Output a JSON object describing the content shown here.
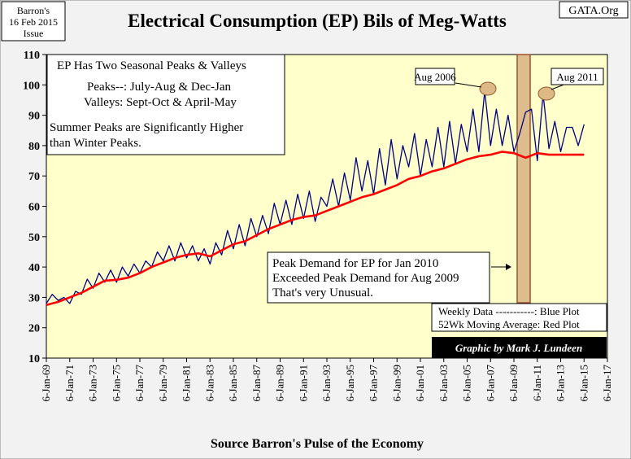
{
  "header": {
    "title": "Electrical Consumption (EP) Bils of Meg-Watts",
    "source_line1": "Barron's",
    "source_line2": "16 Feb 2015",
    "source_line3": "Issue",
    "site": "GATA.Org"
  },
  "footer": {
    "source": "Source Barron's Pulse of the Economy"
  },
  "notes": {
    "box1_title": "EP Has Two Seasonal Peaks & Valleys",
    "box1_peaks": "Peaks--:  July-Aug & Dec-Jan",
    "box1_valleys": "Valleys:  Sept-Oct & April-May",
    "box1_summer1": "Summer Peaks are Significantly  Higher",
    "box1_summer2": "than Winter Peaks.",
    "peak_line1": "Peak Demand for EP for Jan 2010",
    "peak_line2": "Exceeded Peak Demand for Aug 2009",
    "peak_line3": "That's very Unusual.",
    "legend_line1": "Weekly Data -----------: Blue Plot",
    "legend_line2": "52Wk Moving Average: Red Plot",
    "credit": "Graphic by Mark J. Lundeen",
    "callout_2006": "Aug 2006",
    "callout_2011": "Aug 2011"
  },
  "chart_data": {
    "type": "line",
    "title": "Electrical Consumption (EP) Bils of Meg-Watts",
    "xlabel": "Source Barron's Pulse of the Economy",
    "ylabel": "",
    "ylim": [
      10,
      110
    ],
    "yticks": [
      10,
      20,
      30,
      40,
      50,
      60,
      70,
      80,
      90,
      100,
      110
    ],
    "xlim": [
      1969,
      2017
    ],
    "xticks": [
      "6-Jan-69",
      "6-Jan-71",
      "6-Jan-73",
      "6-Jan-75",
      "6-Jan-77",
      "6-Jan-79",
      "6-Jan-81",
      "6-Jan-83",
      "6-Jan-85",
      "6-Jan-87",
      "6-Jan-89",
      "6-Jan-91",
      "6-Jan-93",
      "6-Jan-95",
      "6-Jan-97",
      "6-Jan-99",
      "6-Jan-01",
      "6-Jan-03",
      "6-Jan-05",
      "6-Jan-07",
      "6-Jan-09",
      "6-Jan-11",
      "6-Jan-13",
      "6-Jan-15",
      "6-Jan-17"
    ],
    "grid": false,
    "colors": {
      "plot_bg": "#ffffcc",
      "weekly": "#000080",
      "average": "#ff0000",
      "highlight": "#d2a679"
    },
    "series": [
      {
        "name": "Weekly Data",
        "color": "#000080",
        "x": [
          1969.0,
          1969.5,
          1970.0,
          1970.5,
          1971.0,
          1971.5,
          1972.0,
          1972.5,
          1973.0,
          1973.5,
          1974.0,
          1974.5,
          1975.0,
          1975.5,
          1976.0,
          1976.5,
          1977.0,
          1977.5,
          1978.0,
          1978.5,
          1979.0,
          1979.5,
          1980.0,
          1980.5,
          1981.0,
          1981.5,
          1982.0,
          1982.5,
          1983.0,
          1983.5,
          1984.0,
          1984.5,
          1985.0,
          1985.5,
          1986.0,
          1986.5,
          1987.0,
          1987.5,
          1988.0,
          1988.5,
          1989.0,
          1989.5,
          1990.0,
          1990.5,
          1991.0,
          1991.5,
          1992.0,
          1992.5,
          1993.0,
          1993.5,
          1994.0,
          1994.5,
          1995.0,
          1995.5,
          1996.0,
          1996.5,
          1997.0,
          1997.5,
          1998.0,
          1998.5,
          1999.0,
          1999.5,
          2000.0,
          2000.5,
          2001.0,
          2001.5,
          2002.0,
          2002.5,
          2003.0,
          2003.5,
          2004.0,
          2004.5,
          2005.0,
          2005.5,
          2006.0,
          2006.5,
          2007.0,
          2007.5,
          2008.0,
          2008.5,
          2009.0,
          2009.5,
          2010.0,
          2010.5,
          2011.0,
          2011.5,
          2012.0,
          2012.5,
          2013.0,
          2013.5,
          2014.0,
          2014.5,
          2015.0
        ],
        "values": [
          28,
          31,
          29,
          30,
          28,
          32,
          31,
          36,
          33,
          38,
          35,
          39,
          35,
          40,
          37,
          41,
          38,
          42,
          40,
          45,
          42,
          47,
          42,
          48,
          43,
          47,
          42,
          46,
          41,
          48,
          44,
          52,
          46,
          54,
          47,
          56,
          50,
          57,
          51,
          61,
          54,
          62,
          54,
          64,
          56,
          65,
          55,
          63,
          60,
          69,
          60,
          71,
          62,
          76,
          65,
          75,
          64,
          79,
          67,
          82,
          69,
          80,
          73,
          84,
          70,
          82,
          73,
          86,
          73,
          88,
          74,
          87,
          78,
          92,
          78,
          98,
          80,
          92,
          80,
          90,
          78,
          84,
          91,
          92,
          75,
          97,
          79,
          88,
          78,
          86,
          86,
          80,
          87
        ]
      },
      {
        "name": "52Wk Moving Average",
        "color": "#ff0000",
        "x": [
          1969,
          1970,
          1971,
          1972,
          1973,
          1974,
          1975,
          1976,
          1977,
          1978,
          1979,
          1980,
          1981,
          1982,
          1983,
          1984,
          1985,
          1986,
          1987,
          1988,
          1989,
          1990,
          1991,
          1992,
          1993,
          1994,
          1995,
          1996,
          1997,
          1998,
          1999,
          2000,
          2001,
          2002,
          2003,
          2004,
          2005,
          2006,
          2007,
          2008,
          2009,
          2010,
          2011,
          2012,
          2013,
          2014,
          2015
        ],
        "values": [
          27.5,
          28.5,
          30.0,
          31.5,
          33.5,
          35.5,
          35.8,
          36.5,
          38.0,
          40.0,
          41.5,
          43.0,
          44.0,
          44.5,
          43.5,
          45.5,
          47.5,
          48.5,
          50.5,
          52.5,
          54.0,
          55.5,
          56.5,
          57.0,
          58.5,
          60.0,
          61.5,
          63.0,
          64.0,
          65.5,
          67.0,
          69.0,
          70.0,
          71.5,
          72.5,
          74.0,
          75.5,
          76.5,
          77.0,
          78.0,
          77.5,
          76.0,
          77.5,
          77.0,
          77.0,
          77.0,
          77.0
        ]
      }
    ],
    "annotations": [
      "Aug 2006",
      "Aug 2011"
    ]
  }
}
